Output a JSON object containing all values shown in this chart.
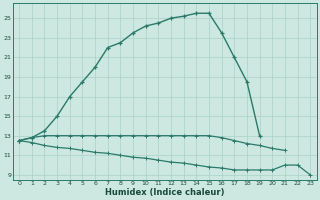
{
  "bg_color": "#cce8e0",
  "grid_color": "#b0d4cc",
  "line_color": "#2a7a6a",
  "xlabel": "Humidex (Indice chaleur)",
  "xlim": [
    -0.5,
    23.5
  ],
  "ylim": [
    8.5,
    26.5
  ],
  "yticks": [
    9,
    11,
    13,
    15,
    17,
    19,
    21,
    23,
    25
  ],
  "xticks": [
    0,
    1,
    2,
    3,
    4,
    5,
    6,
    7,
    8,
    9,
    10,
    11,
    12,
    13,
    14,
    15,
    16,
    17,
    18,
    19,
    20,
    21,
    22,
    23
  ],
  "curve1_x": [
    0,
    1,
    2,
    3,
    4,
    5,
    6,
    7,
    8,
    9,
    10,
    11,
    12,
    13,
    14,
    15,
    16,
    17,
    18,
    19
  ],
  "curve1_y": [
    12.5,
    12.8,
    13.5,
    15.0,
    17.0,
    18.5,
    20.0,
    22.0,
    22.5,
    23.5,
    24.2,
    24.5,
    25.0,
    25.2,
    25.5,
    25.5,
    23.5,
    21.0,
    18.5,
    13.0
  ],
  "curve2_x": [
    0,
    1,
    2,
    3,
    4,
    5,
    6,
    7,
    8,
    9,
    10,
    11,
    12,
    13,
    14,
    15,
    16,
    17,
    18,
    19,
    20,
    21
  ],
  "curve2_y": [
    12.5,
    12.8,
    13.0,
    13.0,
    13.0,
    13.0,
    13.0,
    13.0,
    13.0,
    13.0,
    13.0,
    13.0,
    13.0,
    13.0,
    13.0,
    13.0,
    12.8,
    12.5,
    12.2,
    12.0,
    11.7,
    11.5
  ],
  "curve3_x": [
    0,
    1,
    2,
    3,
    4,
    5,
    6,
    7,
    8,
    9,
    10,
    11,
    12,
    13,
    14,
    15,
    16,
    17,
    18,
    19,
    20,
    21,
    22,
    23
  ],
  "curve3_y": [
    12.5,
    12.3,
    12.0,
    11.8,
    11.7,
    11.5,
    11.3,
    11.2,
    11.0,
    10.8,
    10.7,
    10.5,
    10.3,
    10.2,
    10.0,
    9.8,
    9.7,
    9.5,
    9.5,
    9.5,
    9.5,
    10.0,
    10.0,
    9.0
  ]
}
